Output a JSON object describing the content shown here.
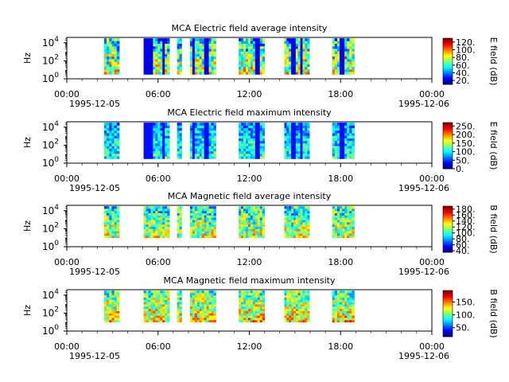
{
  "chart_data": [
    {
      "type": "heatmap",
      "title": "MCA  Electric field average intensity",
      "ylabel": "Hz",
      "y_scale": "log",
      "yticks": [
        {
          "exp": "0"
        },
        {
          "exp": "2"
        },
        {
          "exp": "4"
        }
      ],
      "xticks": [
        "00:00",
        "06:00",
        "12:00",
        "18:00",
        "00:00"
      ],
      "x_dates": [
        "1995-12-05",
        "1995-12-06"
      ],
      "colorbar": {
        "label": "E field (dB)",
        "range": [
          10,
          130
        ],
        "ticks": [
          "120.",
          "100.",
          "80.",
          "60.",
          "40.",
          "20."
        ]
      },
      "intervals_ut": [
        [
          2.45,
          3.45
        ],
        [
          5.05,
          6.75
        ],
        [
          7.25,
          7.55
        ],
        [
          8.1,
          9.8
        ],
        [
          11.3,
          13.0
        ],
        [
          14.3,
          15.95
        ],
        [
          17.45,
          18.9
        ]
      ],
      "freq_range_log10": [
        0.5,
        4.5
      ],
      "value_range": [
        40,
        110
      ]
    },
    {
      "type": "heatmap",
      "title": "MCA  Electric field maximum intensity",
      "ylabel": "Hz",
      "y_scale": "log",
      "yticks": [
        {
          "exp": "0"
        },
        {
          "exp": "2"
        },
        {
          "exp": "4"
        }
      ],
      "xticks": [
        "00:00",
        "06:00",
        "12:00",
        "18:00",
        "00:00"
      ],
      "x_dates": [
        "1995-12-05",
        "1995-12-06"
      ],
      "colorbar": {
        "label": "E field (dB)",
        "range": [
          0,
          270
        ],
        "ticks": [
          "250.",
          "200.",
          "150.",
          "100.",
          "50.",
          "0."
        ]
      },
      "intervals_ut": [
        [
          2.45,
          3.45
        ],
        [
          5.05,
          6.75
        ],
        [
          7.25,
          7.55
        ],
        [
          8.1,
          9.8
        ],
        [
          11.3,
          13.0
        ],
        [
          14.3,
          15.95
        ],
        [
          17.45,
          18.9
        ]
      ],
      "freq_range_log10": [
        0.5,
        4.5
      ],
      "value_range": [
        60,
        150
      ]
    },
    {
      "type": "heatmap",
      "title": "MCA  Magnetic field average intensity",
      "ylabel": "Hz",
      "y_scale": "log",
      "yticks": [
        {
          "exp": "0"
        },
        {
          "exp": "2"
        },
        {
          "exp": "4"
        }
      ],
      "xticks": [
        "00:00",
        "06:00",
        "12:00",
        "18:00",
        "00:00"
      ],
      "x_dates": [
        "1995-12-05",
        "1995-12-06"
      ],
      "colorbar": {
        "label": "B field (dB)",
        "range": [
          35,
          190
        ],
        "ticks": [
          "180.",
          "160.",
          "140.",
          "120.",
          "100.",
          "80.",
          "60.",
          "40."
        ]
      },
      "intervals_ut": [
        [
          2.45,
          3.45
        ],
        [
          5.05,
          6.75
        ],
        [
          7.25,
          7.55
        ],
        [
          8.1,
          9.8
        ],
        [
          11.3,
          13.0
        ],
        [
          14.3,
          15.95
        ],
        [
          17.45,
          18.9
        ]
      ],
      "freq_range_log10": [
        1.0,
        4.5
      ],
      "value_range": [
        80,
        160
      ]
    },
    {
      "type": "heatmap",
      "title": "MCA  Magnetic field maximum intensity",
      "ylabel": "Hz",
      "y_scale": "log",
      "yticks": [
        {
          "exp": "0"
        },
        {
          "exp": "2"
        },
        {
          "exp": "4"
        }
      ],
      "xticks": [
        "00:00",
        "06:00",
        "12:00",
        "18:00",
        "00:00"
      ],
      "x_dates": [
        "1995-12-05",
        "1995-12-06"
      ],
      "colorbar": {
        "label": "B field (dB)",
        "range": [
          15,
          195
        ],
        "ticks": [
          "150.",
          "100.",
          "50."
        ]
      },
      "intervals_ut": [
        [
          2.45,
          3.45
        ],
        [
          5.05,
          6.75
        ],
        [
          7.25,
          7.55
        ],
        [
          8.1,
          9.8
        ],
        [
          11.3,
          13.0
        ],
        [
          14.3,
          15.95
        ],
        [
          17.45,
          18.9
        ]
      ],
      "freq_range_log10": [
        1.0,
        4.5
      ],
      "value_range": [
        80,
        170
      ]
    }
  ]
}
